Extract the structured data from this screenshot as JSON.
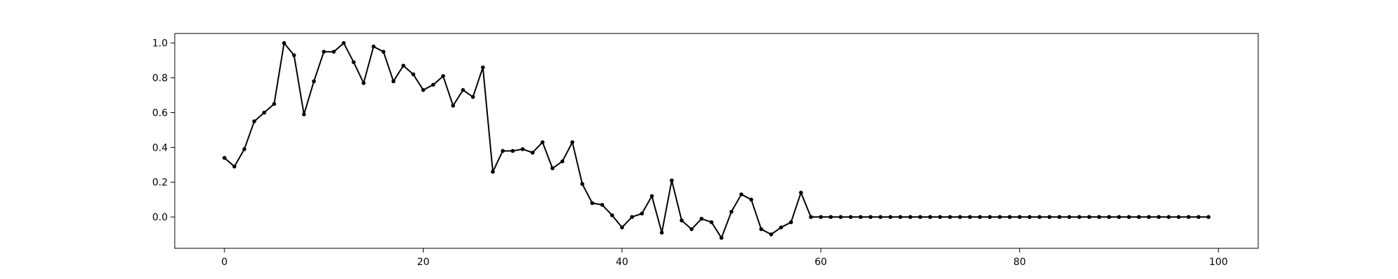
{
  "chart_data": {
    "type": "line",
    "title": "",
    "xlabel": "",
    "ylabel": "",
    "xlim": [
      -5,
      104
    ],
    "ylim": [
      -0.18,
      1.055
    ],
    "x_ticks": [
      0,
      20,
      40,
      60,
      80,
      100
    ],
    "x_tick_labels": [
      "0",
      "20",
      "40",
      "60",
      "80",
      "100"
    ],
    "y_ticks": [
      0.0,
      0.2,
      0.4,
      0.6,
      0.8,
      1.0
    ],
    "y_tick_labels": [
      "0.0",
      "0.2",
      "0.4",
      "0.6",
      "0.8",
      "1.0"
    ],
    "grid": false,
    "series": [
      {
        "color": "#000000",
        "marker": "circle",
        "x": [
          0,
          1,
          2,
          3,
          4,
          5,
          6,
          7,
          8,
          9,
          10,
          11,
          12,
          13,
          14,
          15,
          16,
          17,
          18,
          19,
          20,
          21,
          22,
          23,
          24,
          25,
          26,
          27,
          28,
          29,
          30,
          31,
          32,
          33,
          34,
          35,
          36,
          37,
          38,
          39,
          40,
          41,
          42,
          43,
          44,
          45,
          46,
          47,
          48,
          49,
          50,
          51,
          52,
          53,
          54,
          55,
          56,
          57,
          58,
          59,
          60,
          61,
          62,
          63,
          64,
          65,
          66,
          67,
          68,
          69,
          70,
          71,
          72,
          73,
          74,
          75,
          76,
          77,
          78,
          79,
          80,
          81,
          82,
          83,
          84,
          85,
          86,
          87,
          88,
          89,
          90,
          91,
          92,
          93,
          94,
          95,
          96,
          97,
          98,
          99
        ],
        "values": [
          0.34,
          0.29,
          0.39,
          0.55,
          0.6,
          0.65,
          1.0,
          0.93,
          0.59,
          0.78,
          0.95,
          0.95,
          1.0,
          0.89,
          0.77,
          0.98,
          0.95,
          0.78,
          0.87,
          0.82,
          0.73,
          0.76,
          0.81,
          0.64,
          0.73,
          0.69,
          0.86,
          0.26,
          0.38,
          0.38,
          0.39,
          0.37,
          0.43,
          0.28,
          0.32,
          0.43,
          0.19,
          0.08,
          0.07,
          0.01,
          -0.06,
          0.0,
          0.02,
          0.12,
          -0.09,
          0.21,
          -0.02,
          -0.07,
          -0.01,
          -0.03,
          -0.12,
          0.03,
          0.13,
          0.1,
          -0.07,
          -0.1,
          -0.06,
          -0.03,
          0.14,
          0.0,
          0.0,
          0.0,
          0.0,
          0.0,
          0.0,
          0.0,
          0.0,
          0.0,
          0.0,
          0.0,
          0.0,
          0.0,
          0.0,
          0.0,
          0.0,
          0.0,
          0.0,
          0.0,
          0.0,
          0.0,
          0.0,
          0.0,
          0.0,
          0.0,
          0.0,
          0.0,
          0.0,
          0.0,
          0.0,
          0.0,
          0.0,
          0.0,
          0.0,
          0.0,
          0.0,
          0.0,
          0.0,
          0.0,
          0.0,
          0.0
        ]
      }
    ]
  }
}
